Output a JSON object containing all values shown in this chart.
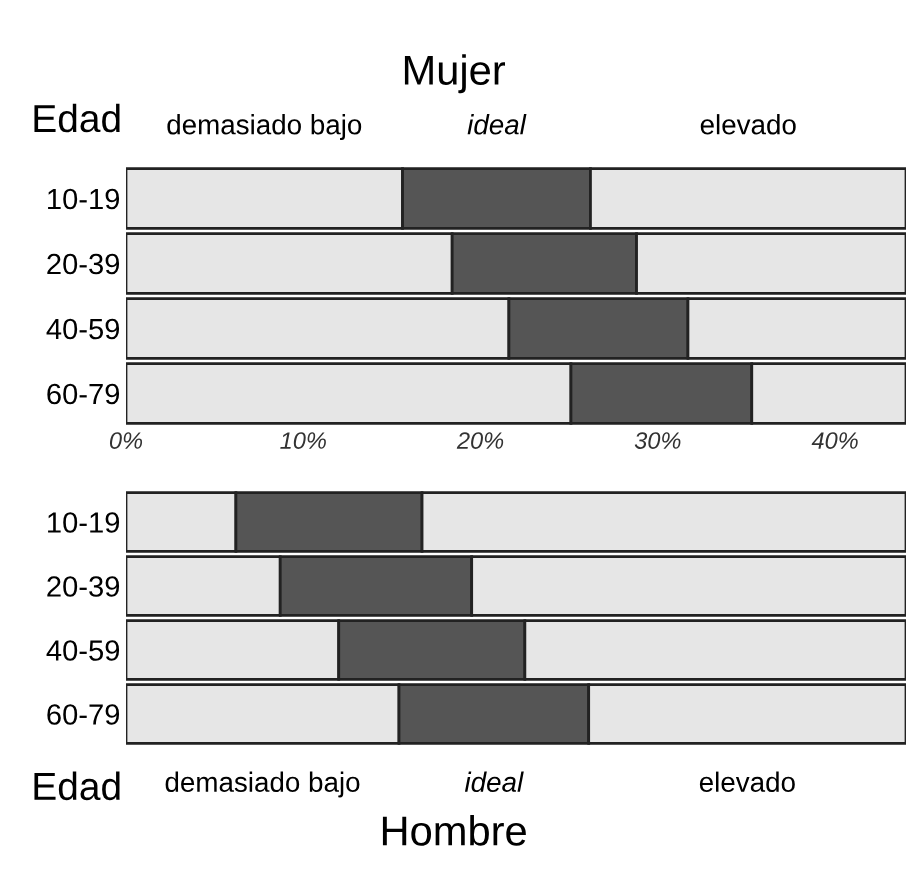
{
  "chart_data": [
    {
      "type": "bar",
      "title": "Mujer",
      "ylabel": "Edad",
      "orientation": "horizontal",
      "stacked": true,
      "categories": [
        "10-19",
        "20-39",
        "40-59",
        "60-79"
      ],
      "series": [
        {
          "name": "demasiado bajo",
          "color": "#e6e6e6",
          "values": [
            15.6,
            18.4,
            21.6,
            25.1
          ]
        },
        {
          "name": "ideal",
          "color": "#555555",
          "values": [
            10.6,
            10.4,
            10.1,
            10.2
          ]
        },
        {
          "name": "elevado",
          "color": "#e6e6e6",
          "values": [
            17.8,
            15.2,
            12.3,
            8.7
          ]
        }
      ],
      "xlim": [
        0,
        44
      ],
      "xticks": [
        {
          "value": 0,
          "label": "0%"
        },
        {
          "value": 10,
          "label": "10%"
        },
        {
          "value": 20,
          "label": "20%"
        },
        {
          "value": 30,
          "label": "30%"
        },
        {
          "value": 40,
          "label": "40%"
        }
      ]
    },
    {
      "type": "bar",
      "title": "Hombre",
      "ylabel": "Edad",
      "orientation": "horizontal",
      "stacked": true,
      "categories": [
        "10-19",
        "20-39",
        "40-59",
        "60-79"
      ],
      "series": [
        {
          "name": "demasiado bajo",
          "color": "#e6e6e6",
          "values": [
            6.2,
            8.7,
            12.0,
            15.4
          ]
        },
        {
          "name": "ideal",
          "color": "#555555",
          "values": [
            10.5,
            10.8,
            10.5,
            10.7
          ]
        },
        {
          "name": "elevado",
          "color": "#e6e6e6",
          "values": [
            27.3,
            24.5,
            21.5,
            17.9
          ]
        }
      ],
      "xlim": [
        0,
        44
      ],
      "tick_labels": "y"
    }
  ]
}
